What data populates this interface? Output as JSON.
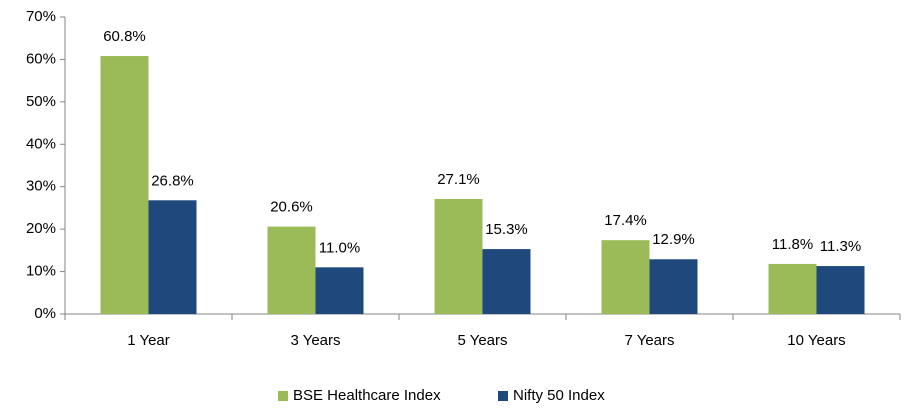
{
  "chart_data": {
    "type": "bar",
    "categories": [
      "1 Year",
      "3 Years",
      "5 Years",
      "7 Years",
      "10 Years"
    ],
    "series": [
      {
        "name": "BSE Healthcare Index",
        "color": "#9bbb59",
        "values": [
          60.8,
          20.6,
          27.1,
          17.4,
          11.8
        ],
        "value_labels": [
          "60.8%",
          "20.6%",
          "27.1%",
          "17.4%",
          "11.8%"
        ]
      },
      {
        "name": "Nifty 50 Index",
        "color": "#1f497d",
        "values": [
          26.8,
          11.0,
          15.3,
          12.9,
          11.3
        ],
        "value_labels": [
          "26.8%",
          "11.0%",
          "15.3%",
          "12.9%",
          "11.3%"
        ]
      }
    ],
    "ylim": [
      0,
      70
    ],
    "yticks": [
      {
        "value": 0,
        "label": "0%"
      },
      {
        "value": 10,
        "label": "10%"
      },
      {
        "value": 20,
        "label": "20%"
      },
      {
        "value": 30,
        "label": "30%"
      },
      {
        "value": 40,
        "label": "40%"
      },
      {
        "value": 50,
        "label": "50%"
      },
      {
        "value": 60,
        "label": "60%"
      },
      {
        "value": 70,
        "label": "70%"
      }
    ],
    "grid": false,
    "legend": "bottom"
  }
}
